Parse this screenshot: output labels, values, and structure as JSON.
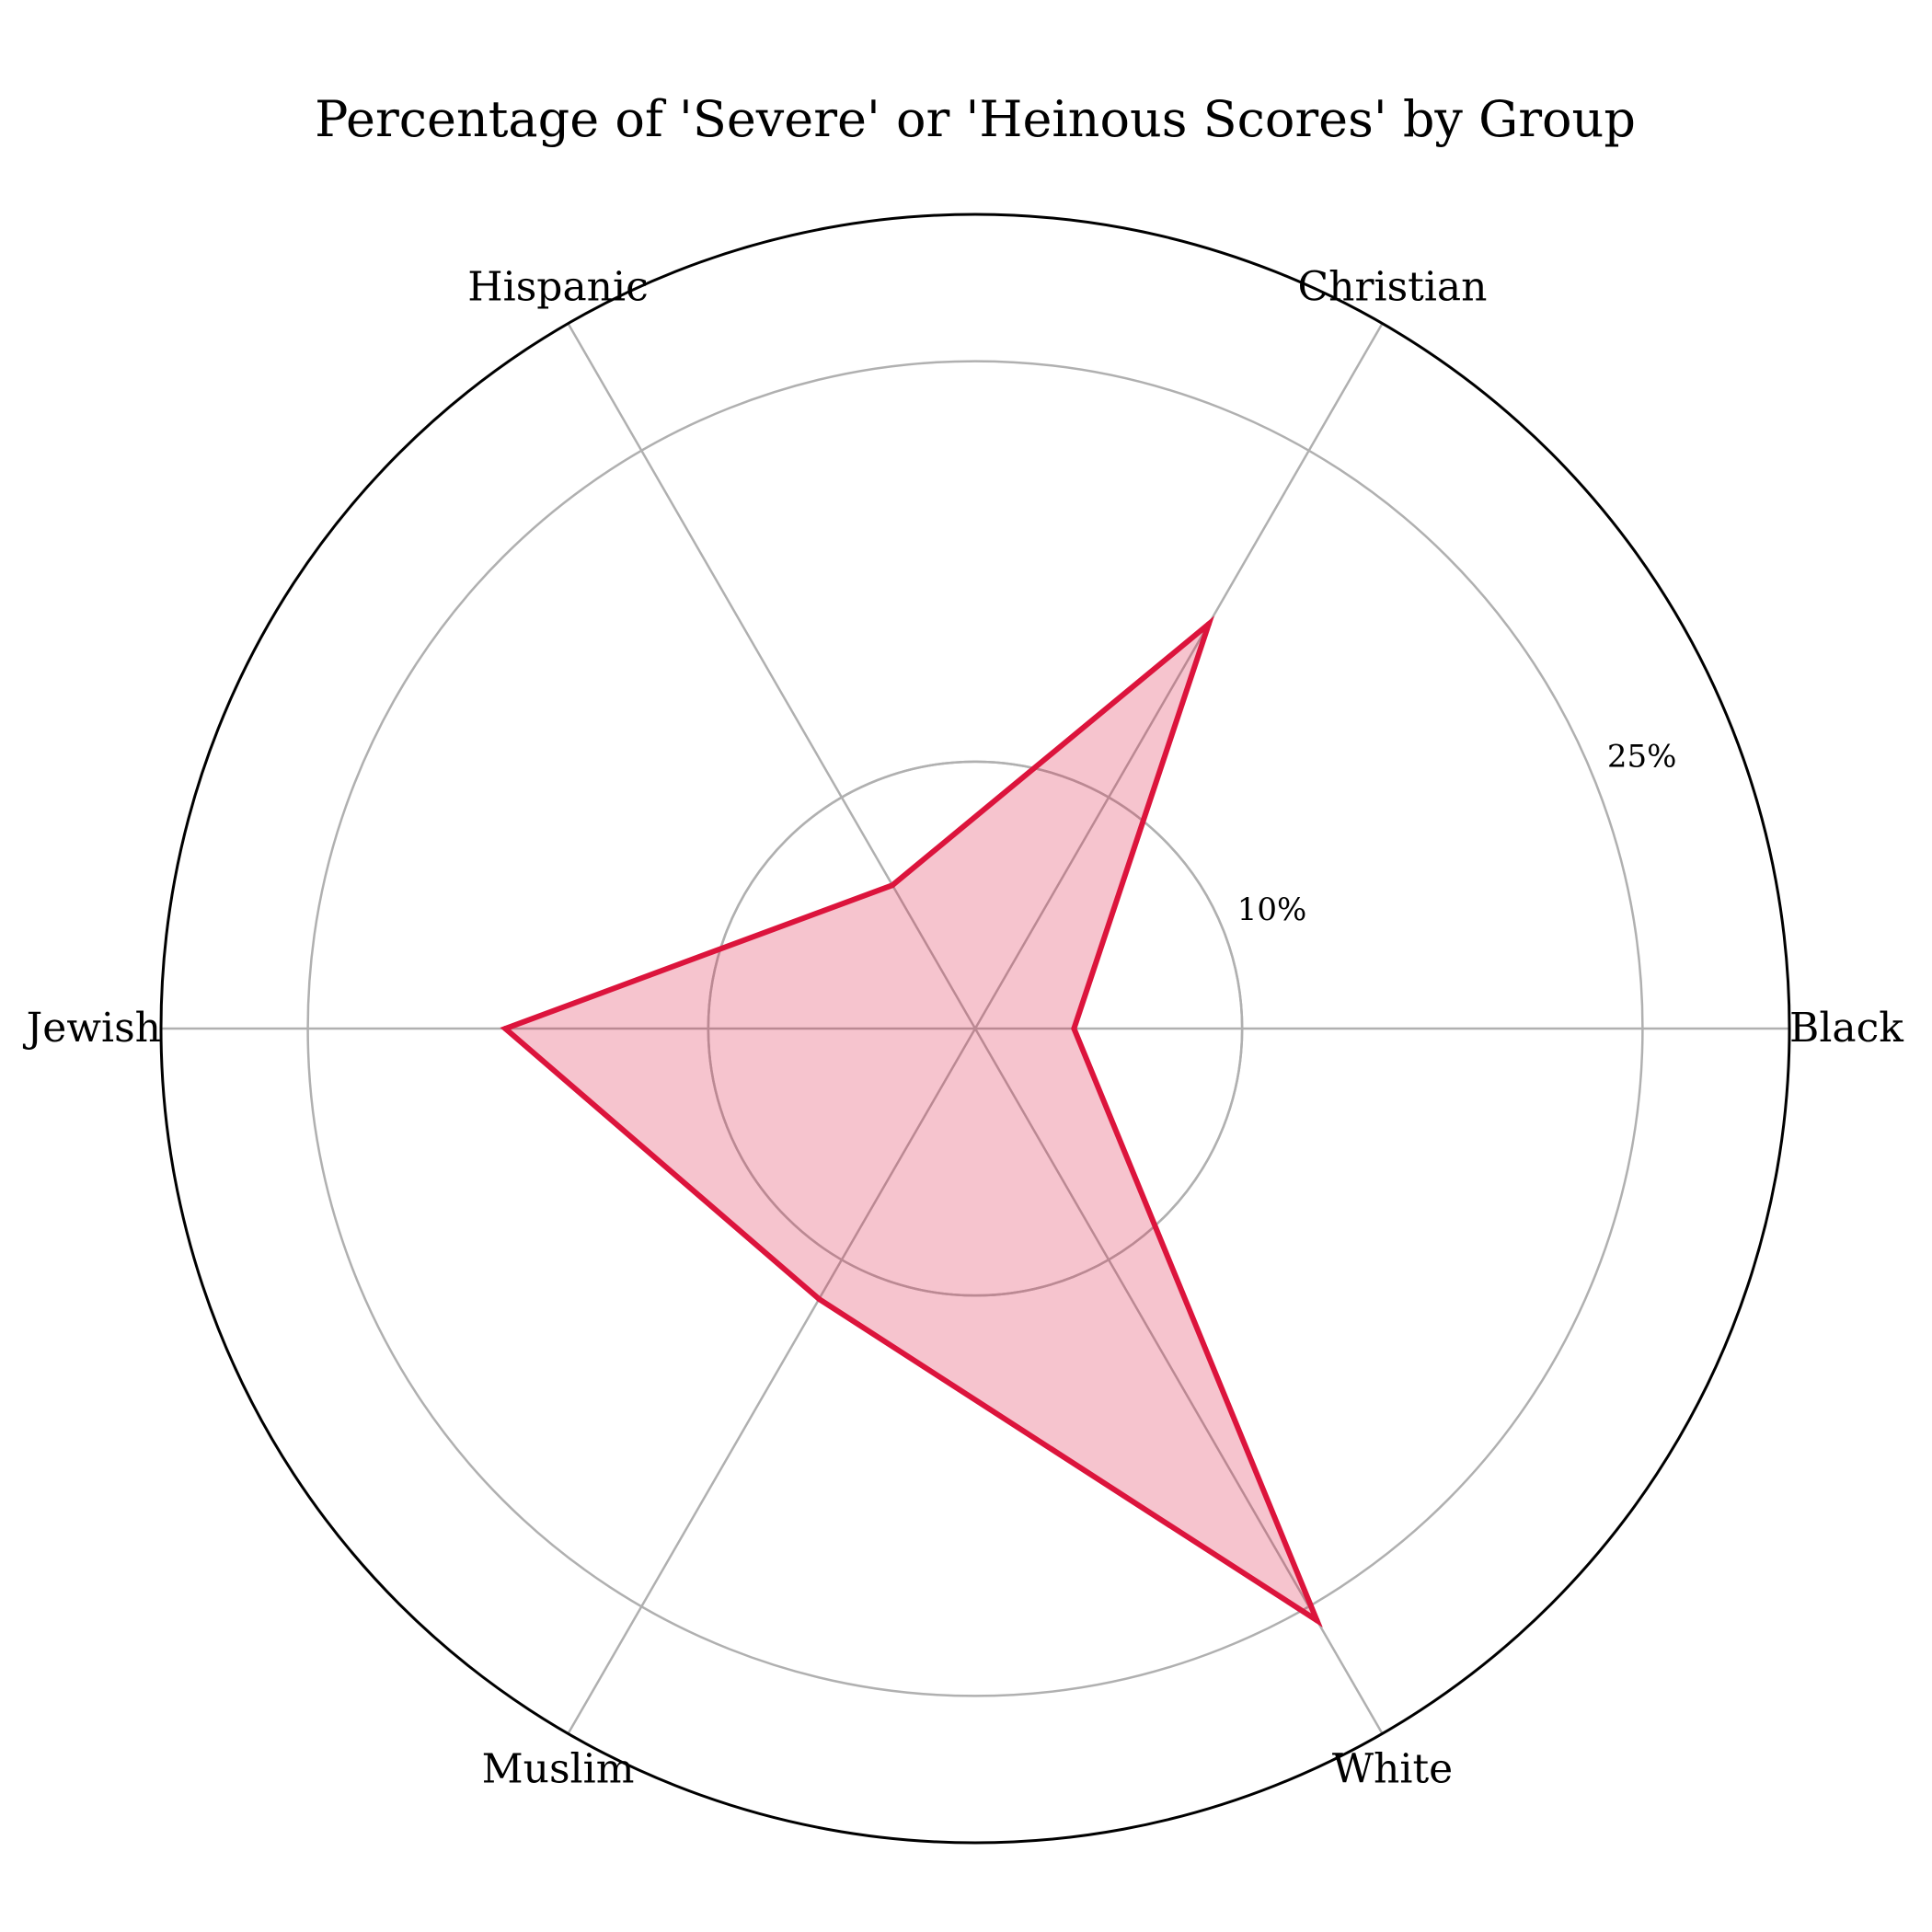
{
  "chart_data": {
    "type": "radar",
    "title": "Percentage of 'Severe' or 'Heinous Scores' by Group",
    "categories": [
      "Black",
      "Christian",
      "Hispanic",
      "Jewish",
      "Muslim",
      "White"
    ],
    "series": [
      {
        "values": [
          3.7,
          17.5,
          6.2,
          17.6,
          11.7,
          25.6
        ],
        "color": "#dc143c"
      }
    ],
    "rlim": [
      0,
      30.5
    ],
    "rticks": [
      10,
      25
    ],
    "rtick_labels": [
      "10%",
      "25%"
    ],
    "grid": true
  }
}
